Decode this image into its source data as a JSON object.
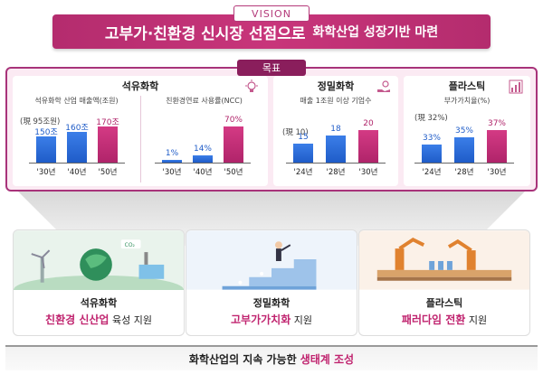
{
  "vision": {
    "tag": "VISION",
    "main": "고부가·친환경 신시장 선점으로",
    "sub": "화학산업 성장기반 마련"
  },
  "goal": {
    "tag": "목표",
    "cards": [
      {
        "title": "석유화학",
        "icon": "lightbulb-icon",
        "panels": [
          {
            "subtitle": "석유화학 산업 매출액(조원)",
            "reference": "(現 95조원)",
            "bars": [
              {
                "category": "'30년",
                "value_label": "150조",
                "value": 150,
                "color": "blue"
              },
              {
                "category": "'40년",
                "value_label": "160조",
                "value": 160,
                "color": "blue"
              },
              {
                "category": "'50년",
                "value_label": "170조",
                "value": 170,
                "color": "pink"
              }
            ]
          },
          {
            "subtitle": "친환경연료 사용률(NCC)",
            "reference": "",
            "bars": [
              {
                "category": "'30년",
                "value_label": "1%",
                "value": 1,
                "color": "blue"
              },
              {
                "category": "'40년",
                "value_label": "14%",
                "value": 14,
                "color": "blue"
              },
              {
                "category": "'50년",
                "value_label": "70%",
                "value": 70,
                "color": "pink"
              }
            ]
          }
        ]
      },
      {
        "title": "정밀화학",
        "icon": "hand-coin-icon",
        "panels": [
          {
            "subtitle": "매출 1조원 이상 기업수",
            "reference": "(現 10)",
            "bars": [
              {
                "category": "'24년",
                "value_label": "15",
                "value": 15,
                "color": "blue"
              },
              {
                "category": "'28년",
                "value_label": "18",
                "value": 18,
                "color": "blue"
              },
              {
                "category": "'30년",
                "value_label": "20",
                "value": 20,
                "color": "pink"
              }
            ]
          }
        ]
      },
      {
        "title": "플라스틱",
        "icon": "growth-chart-icon",
        "panels": [
          {
            "subtitle": "부가가치율(%)",
            "reference": "(現 32%)",
            "bars": [
              {
                "category": "'24년",
                "value_label": "33%",
                "value": 33,
                "color": "blue"
              },
              {
                "category": "'28년",
                "value_label": "35%",
                "value": 35,
                "color": "blue"
              },
              {
                "category": "'30년",
                "value_label": "37%",
                "value": 37,
                "color": "pink"
              }
            ]
          }
        ]
      }
    ]
  },
  "strategies": [
    {
      "line1": "석유화학",
      "highlight": "친환경 신산업",
      "rest": "육성 지원",
      "image": "eco-industry-illustration"
    },
    {
      "line1": "정밀화학",
      "highlight": "고부가가치화",
      "rest": "지원",
      "image": "staircase-growth-illustration"
    },
    {
      "line1": "플라스틱",
      "highlight": "패러다임 전환",
      "rest": "지원",
      "image": "factory-robot-illustration"
    }
  ],
  "foundation": {
    "text": "화학산업의 지속 가능한",
    "highlight": "생태계 조성"
  },
  "colors": {
    "brand": "#b42c6e",
    "bar_blue": "#1f5cc8",
    "bar_pink": "#b0246a",
    "frame_bg": "#fbeaf3"
  }
}
